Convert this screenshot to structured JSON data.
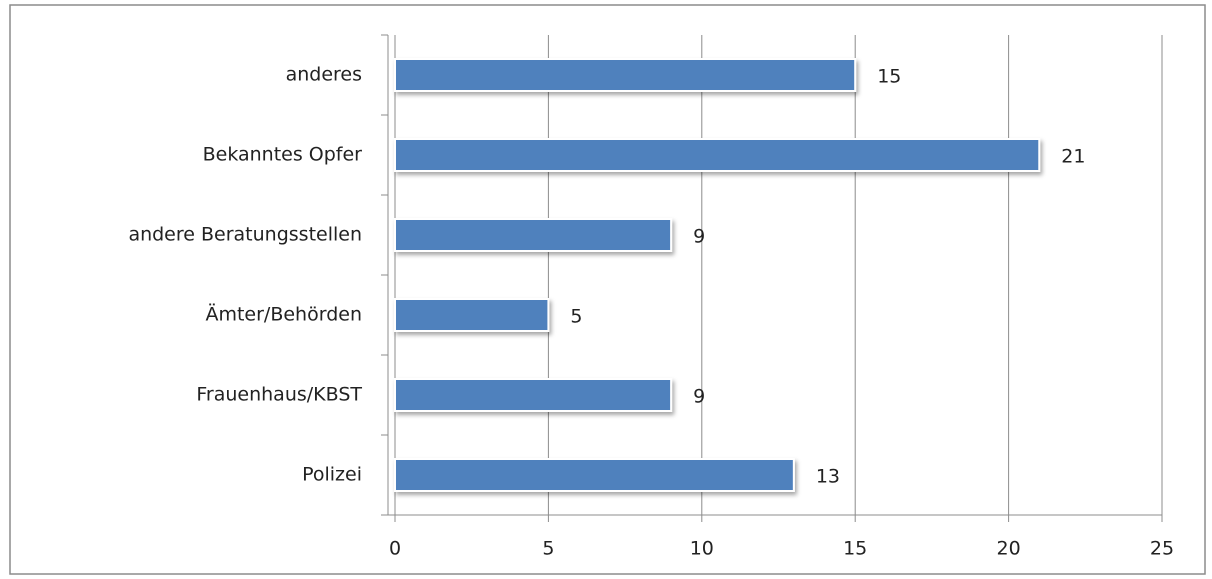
{
  "chart_data": {
    "type": "bar",
    "orientation": "horizontal",
    "categories": [
      "anderes",
      "Bekanntes Opfer",
      "andere Beratungsstellen",
      "Ämter/Behörden",
      "Frauenhaus/KBST",
      "Polizei"
    ],
    "values": [
      15,
      21,
      9,
      5,
      9,
      13
    ],
    "color": "#4f81bd",
    "xlim": [
      0,
      25
    ],
    "xticks": [
      0,
      5,
      10,
      15,
      20,
      25
    ],
    "grid": true,
    "data_labels": true
  }
}
